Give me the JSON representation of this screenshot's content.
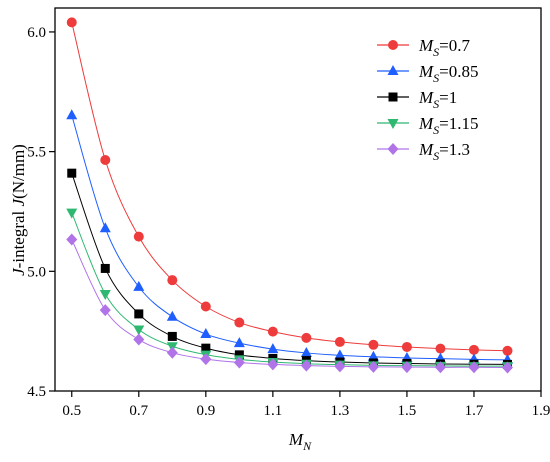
{
  "chart_data": {
    "type": "line",
    "title": "",
    "xlabel": {
      "italic": "M",
      "sub": "N"
    },
    "ylabel": {
      "italic": "J",
      "rest": "-integral ",
      "italic2": "J",
      "unit": "(N/mm)"
    },
    "xlim": [
      0.45,
      1.9
    ],
    "ylim": [
      4.5,
      6.1
    ],
    "xticks": [
      0.5,
      0.7,
      0.9,
      1.1,
      1.3,
      1.5,
      1.7,
      1.9
    ],
    "xtick_labels": [
      "0.5",
      "0.7",
      "0.9",
      "1.1",
      "1.3",
      "1.5",
      "1.7",
      "1.9"
    ],
    "yticks": [
      4.5,
      5.0,
      5.5,
      6.0
    ],
    "ytick_labels": [
      "4.5",
      "5.0",
      "5.5",
      "6.0"
    ],
    "grid": false,
    "legend_position": "top-right",
    "x": [
      0.5,
      0.6,
      0.7,
      0.8,
      0.9,
      1.0,
      1.1,
      1.2,
      1.3,
      1.4,
      1.5,
      1.6,
      1.7,
      1.8
    ],
    "series": [
      {
        "name": "=0.7",
        "label_italic": "M",
        "label_sub": "S",
        "label_value": "=0.7",
        "color": "#ee3b3b",
        "marker": "circle",
        "values": [
          6.04,
          5.465,
          5.145,
          4.963,
          4.853,
          4.786,
          4.748,
          4.722,
          4.705,
          4.693,
          4.684,
          4.677,
          4.672,
          4.668
        ]
      },
      {
        "name": "=0.85",
        "label_italic": "M",
        "label_sub": "S",
        "label_value": "=0.85",
        "color": "#1f5fff",
        "marker": "triangle-up",
        "values": [
          5.652,
          5.18,
          4.935,
          4.81,
          4.738,
          4.7,
          4.675,
          4.659,
          4.649,
          4.643,
          4.638,
          4.635,
          4.632,
          4.63
        ]
      },
      {
        "name": "=1",
        "label_italic": "M",
        "label_sub": "S",
        "label_value": "=1",
        "color": "#000000",
        "marker": "square",
        "values": [
          5.41,
          5.012,
          4.822,
          4.728,
          4.679,
          4.651,
          4.636,
          4.627,
          4.621,
          4.617,
          4.615,
          4.613,
          4.612,
          4.611
        ]
      },
      {
        "name": "=1.15",
        "label_italic": "M",
        "label_sub": "S",
        "label_value": "=1.15",
        "color": "#2eb872",
        "marker": "triangle-down",
        "values": [
          5.245,
          4.905,
          4.757,
          4.687,
          4.652,
          4.632,
          4.621,
          4.614,
          4.61,
          4.607,
          4.606,
          4.605,
          4.604,
          4.604
        ]
      },
      {
        "name": "=1.3",
        "label_italic": "M",
        "label_sub": "S",
        "label_value": "=1.3",
        "color": "#b073e8",
        "marker": "diamond",
        "values": [
          5.133,
          4.838,
          4.715,
          4.66,
          4.633,
          4.619,
          4.611,
          4.606,
          4.603,
          4.601,
          4.6,
          4.599,
          4.599,
          4.598
        ]
      }
    ]
  }
}
